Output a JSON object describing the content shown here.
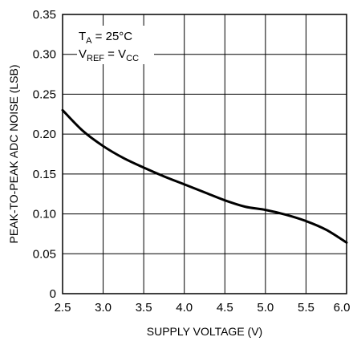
{
  "chart_data": {
    "type": "line",
    "xlabel": "SUPPLY VOLTAGE (V)",
    "ylabel": "PEAK-TO-PEAK ADC NOISE (LSB)",
    "xlim": [
      2.5,
      6.0
    ],
    "ylim": [
      0,
      0.35
    ],
    "grid": true,
    "x_ticks": [
      "2.5",
      "3.0",
      "3.5",
      "4.0",
      "4.5",
      "5.0",
      "5.5",
      "6.0"
    ],
    "y_ticks": [
      "0",
      "0.05",
      "0.10",
      "0.15",
      "0.20",
      "0.25",
      "0.30",
      "0.35"
    ],
    "annotations": [
      {
        "main": "T",
        "sub": "A",
        "rest": " = 25°C"
      },
      {
        "main": "V",
        "sub": "REF",
        "mid": " = V",
        "sub2": "CC"
      }
    ],
    "series": [
      {
        "x": [
          2.5,
          2.75,
          3.0,
          3.25,
          3.5,
          3.75,
          4.0,
          4.25,
          4.5,
          4.75,
          5.0,
          5.25,
          5.5,
          5.75,
          6.0
        ],
        "y": [
          0.23,
          0.204,
          0.185,
          0.17,
          0.158,
          0.147,
          0.137,
          0.127,
          0.117,
          0.109,
          0.105,
          0.099,
          0.091,
          0.08,
          0.064
        ]
      }
    ]
  }
}
